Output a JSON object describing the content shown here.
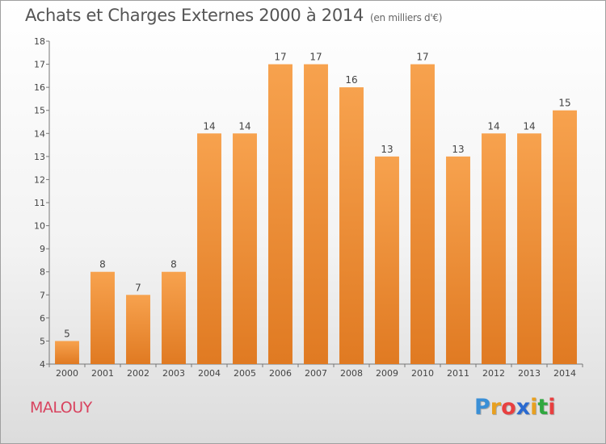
{
  "header": {
    "title": "Achats et Charges Externes 2000 à 2014",
    "subtitle": "(en milliers d'€)"
  },
  "footer": {
    "commune": "MALOUY",
    "logo_letters": [
      "P",
      "r",
      "o",
      "x",
      "i",
      "t",
      "i"
    ],
    "logo_colors": [
      "#3a8fd6",
      "#e8a020",
      "#e84040",
      "#2a6ad0",
      "#e8a020",
      "#30a840",
      "#e84040"
    ]
  },
  "colors": {
    "bar_light": "#f7a24e",
    "bar_dark": "#e07a22",
    "axis": "#777777",
    "text": "#444444"
  },
  "chart_data": {
    "type": "bar",
    "title": "Achats et Charges Externes 2000 à 2014",
    "subtitle": "(en milliers d'€)",
    "xlabel": "",
    "ylabel": "",
    "categories": [
      "2000",
      "2001",
      "2002",
      "2003",
      "2004",
      "2005",
      "2006",
      "2007",
      "2008",
      "2009",
      "2010",
      "2011",
      "2012",
      "2013",
      "2014"
    ],
    "values": [
      5,
      8,
      7,
      8,
      14,
      14,
      17,
      17,
      16,
      13,
      17,
      13,
      14,
      14,
      15
    ],
    "data_labels": [
      "5",
      "8",
      "7",
      "8",
      "14",
      "14",
      "17",
      "17",
      "16",
      "13",
      "17",
      "13",
      "14",
      "14",
      "15"
    ],
    "ylim": [
      4,
      18
    ],
    "yticks": [
      "4",
      "5",
      "6",
      "7",
      "8",
      "9",
      "10",
      "11",
      "12",
      "13",
      "14",
      "15",
      "16",
      "17",
      "18"
    ],
    "grid": false,
    "legend": "none"
  }
}
